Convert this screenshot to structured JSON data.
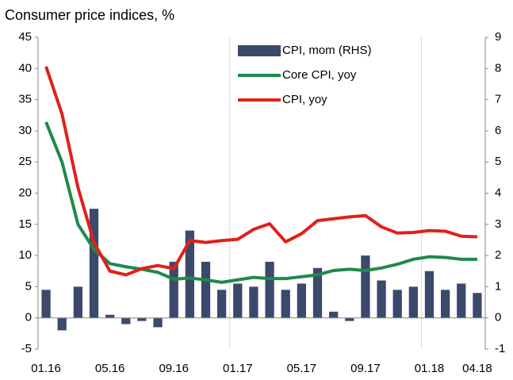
{
  "chart_data": {
    "type": "combo",
    "title": "Consumer price indices, %",
    "categories": [
      "01.16",
      null,
      null,
      null,
      "05.16",
      null,
      null,
      null,
      "09.16",
      null,
      null,
      null,
      "01.17",
      null,
      null,
      null,
      "05.17",
      null,
      null,
      null,
      "09.17",
      null,
      null,
      null,
      "01.18",
      null,
      null,
      "04.18"
    ],
    "series": [
      {
        "name": "CPI, mom (RHS)",
        "type": "bar",
        "axis": "y2",
        "color": "#3b4a6b",
        "values": [
          0.9,
          -0.4,
          1.0,
          3.5,
          0.1,
          -0.2,
          -0.1,
          -0.3,
          1.8,
          2.8,
          1.8,
          0.9,
          1.1,
          1.0,
          1.8,
          0.9,
          1.1,
          1.6,
          0.2,
          -0.1,
          2.0,
          1.2,
          0.9,
          1.0,
          1.5,
          0.9,
          1.1,
          0.8
        ]
      },
      {
        "name": "Core CPI, yoy",
        "type": "line",
        "color": "#1e8a4a",
        "values": [
          31.4,
          25.0,
          15.0,
          11.0,
          8.7,
          8.2,
          7.8,
          7.3,
          6.2,
          6.4,
          6.1,
          5.7,
          6.1,
          6.5,
          6.3,
          6.3,
          6.6,
          6.9,
          7.6,
          7.8,
          7.6,
          8.0,
          8.6,
          9.4,
          9.8,
          9.7,
          9.4,
          9.4
        ]
      },
      {
        "name": "CPI, yoy",
        "type": "line",
        "color": "#e0201b",
        "values": [
          40.3,
          32.7,
          20.9,
          12.1,
          7.5,
          6.9,
          7.9,
          8.4,
          7.9,
          12.4,
          12.1,
          12.4,
          12.6,
          14.2,
          15.1,
          12.2,
          13.5,
          15.6,
          15.9,
          16.2,
          16.4,
          14.6,
          13.6,
          13.7,
          14.0,
          13.9,
          13.1,
          13.0
        ]
      }
    ],
    "ylim": [
      -5,
      45
    ],
    "yticks": [
      -5,
      0,
      5,
      10,
      15,
      20,
      25,
      30,
      35,
      40,
      45
    ],
    "y2lim": [
      -1,
      9
    ],
    "y2ticks": [
      -1,
      0,
      1,
      2,
      3,
      4,
      5,
      6,
      7,
      8,
      9
    ],
    "legend": "top-right"
  }
}
